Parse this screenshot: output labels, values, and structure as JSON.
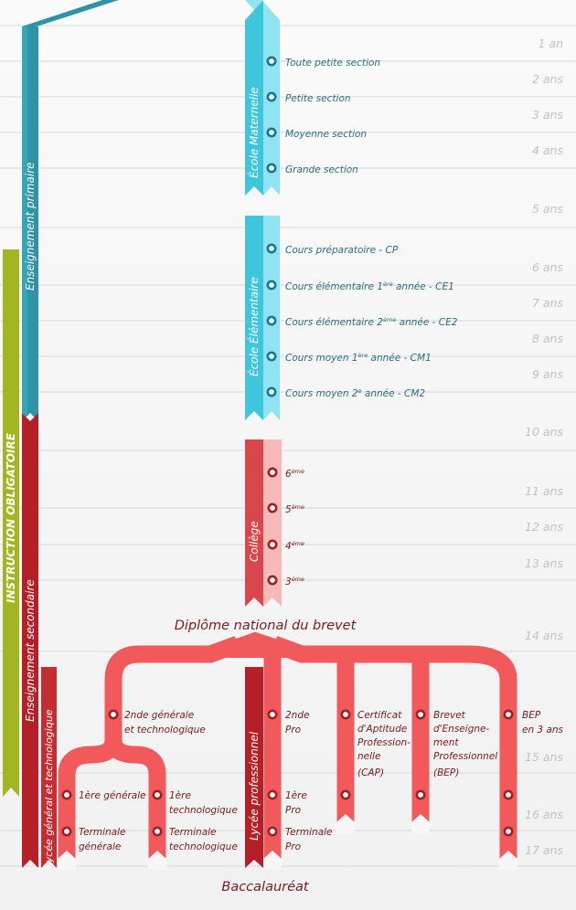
{
  "ages": [
    "1 an",
    "2 ans",
    "3 ans",
    "4 ans",
    "5 ans",
    "6 ans",
    "7 ans",
    "8 ans",
    "9 ans",
    "10 ans",
    "11 ans",
    "12 ans",
    "13 ans",
    "14 ans",
    "15 ans",
    "16 ans",
    "17 ans"
  ],
  "bars": {
    "instruction": "INSTRUCTION OBLIGATOIRE",
    "primaire": "Enseignement primaire",
    "secondaire": "Enseignement secondaire",
    "lycee_gt": "Lycée général et technologique",
    "maternelle": "École Maternelle",
    "elementaire": "École Élémentaire",
    "college": "Collège",
    "lycee_pro": "Lycée professionnel"
  },
  "maternelle": [
    "Toute petite section",
    "Petite section",
    "Moyenne section",
    "Grande section"
  ],
  "elementaire": [
    {
      "pre": "Cours préparatoire - CP",
      "sup": "",
      "post": ""
    },
    {
      "pre": "Cours élémentaire 1",
      "sup": "ère",
      "post": " année - CE1"
    },
    {
      "pre": "Cours élémentaire 2",
      "sup": "ème",
      "post": " année - CE2"
    },
    {
      "pre": "Cours moyen 1",
      "sup": "ère",
      "post": " année - CM1"
    },
    {
      "pre": "Cours moyen 2",
      "sup": "e",
      "post": " année - CM2"
    }
  ],
  "college": [
    {
      "num": "6",
      "sup": "ème"
    },
    {
      "num": "5",
      "sup": "ème"
    },
    {
      "num": "4",
      "sup": "ème"
    },
    {
      "num": "3",
      "sup": "ème"
    }
  ],
  "brevet": "Diplôme national du brevet",
  "bac": "Baccalauréat",
  "lycee": {
    "seconde_gt": [
      "2nde générale",
      "et technologique"
    ],
    "premiere_gen": "1ère générale",
    "premiere_tech": [
      "1ère",
      "technologique"
    ],
    "terminale_gen": [
      "Terminale",
      "générale"
    ],
    "terminale_tech": [
      "Terminale",
      "technologique"
    ],
    "seconde_pro": [
      "2nde",
      "Pro"
    ],
    "premiere_pro": [
      "1ère",
      "Pro"
    ],
    "terminale_pro": [
      "Terminale",
      "Pro"
    ],
    "cap": [
      "Certificat",
      "d'Aptitude",
      "Profession-",
      "nelle",
      "(CAP)"
    ],
    "bep": [
      "Brevet",
      "d'Enseigne-",
      "ment",
      "Professionnel",
      "(BEP)"
    ],
    "bep3": [
      "BEP",
      "en 3 ans"
    ]
  },
  "colors": {
    "green": "#a2b61f",
    "teal": "#2f93a5",
    "cyan": "#3fc6dc",
    "cyan_light": "#8fe3f2",
    "red_dark": "#b51f27",
    "red": "#d9464b",
    "pink": "#f7b8b8",
    "coral": "#f2595b",
    "text_blue": "#2b6f82",
    "text_red": "#7a1a1a"
  }
}
